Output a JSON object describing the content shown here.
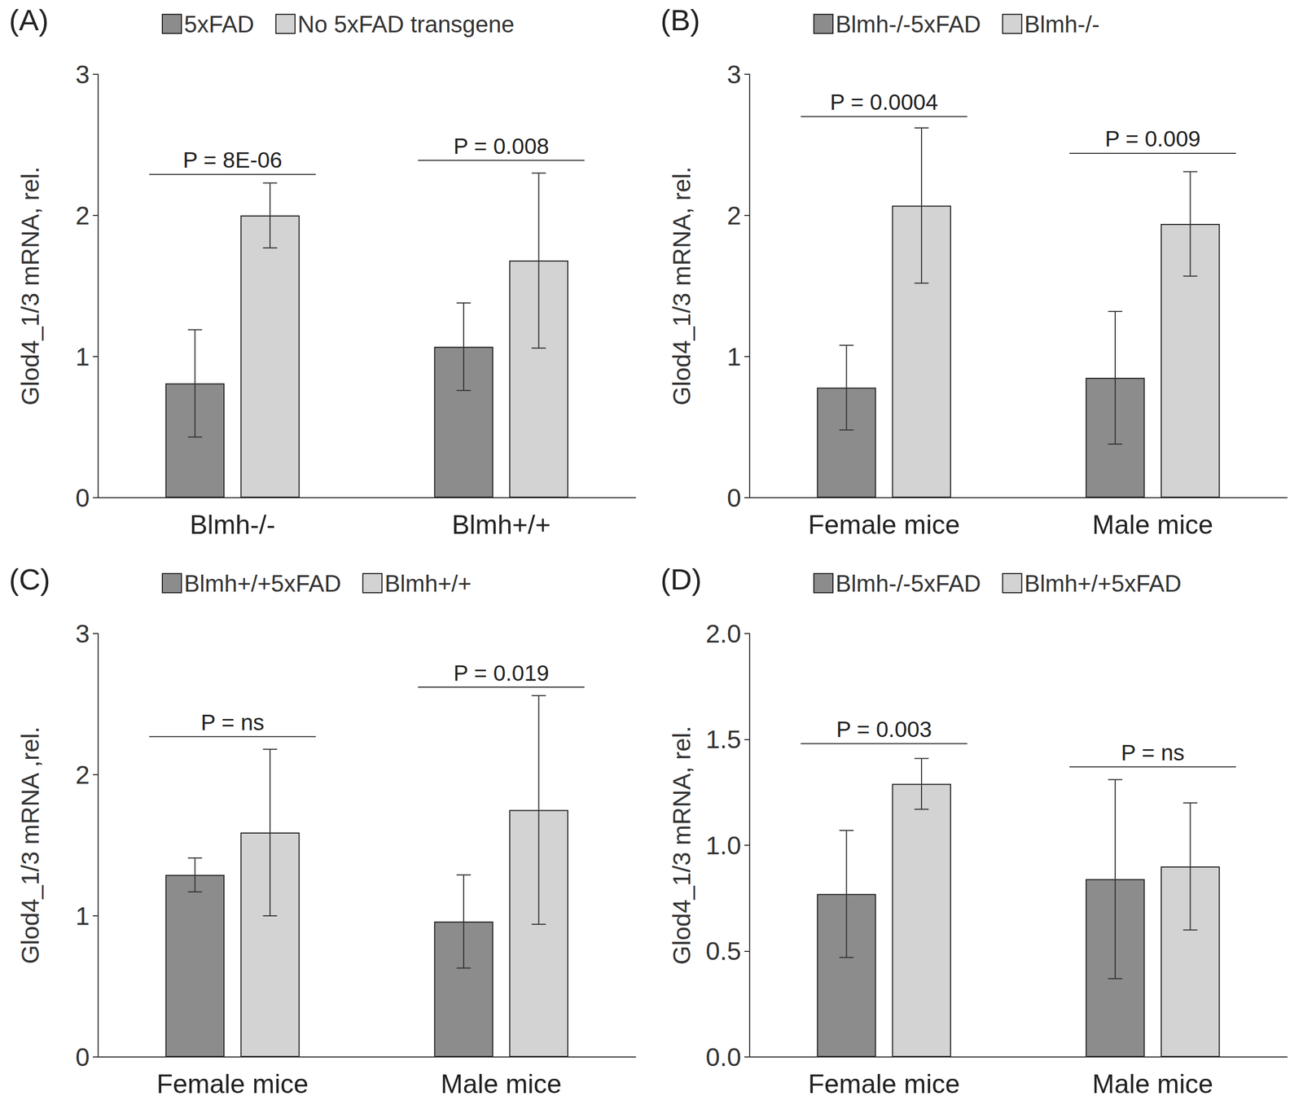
{
  "chart_data": [
    {
      "type": "bar",
      "title": "(A)",
      "y_label": "Glod4_1/3 mRNA, rel.",
      "categories": [
        "Blmh-/-",
        "Blmh+/+"
      ],
      "series": [
        {
          "name": "5xFAD",
          "color": "#8c8c8c",
          "values": [
            0.81,
            1.07
          ],
          "errors": [
            0.38,
            0.31
          ]
        },
        {
          "name": "No 5xFAD transgene",
          "color": "#d3d3d3",
          "values": [
            2.0,
            1.68
          ],
          "errors": [
            0.23,
            0.62
          ]
        }
      ],
      "ylim": [
        0,
        3
      ],
      "yticks": [
        0,
        1,
        2,
        3
      ],
      "grid": false,
      "legend": "top",
      "annotations": [
        {
          "text": "P = 8E-06",
          "category": "Blmh-/-",
          "y": 2.29
        },
        {
          "text": "P = 0.008",
          "category": "Blmh+/+",
          "y": 2.39
        }
      ]
    },
    {
      "type": "bar",
      "title": "(B)",
      "y_label": "Glod4_1/3 mRNA, rel.",
      "categories": [
        "Female mice",
        "Male mice"
      ],
      "series": [
        {
          "name": "Blmh-/-5xFAD",
          "color": "#8c8c8c",
          "values": [
            0.78,
            0.85
          ],
          "errors": [
            0.3,
            0.47
          ]
        },
        {
          "name": "Blmh-/-",
          "color": "#d3d3d3",
          "values": [
            2.07,
            1.94
          ],
          "errors": [
            0.55,
            0.37
          ]
        }
      ],
      "ylim": [
        0,
        3
      ],
      "yticks": [
        0,
        1,
        2,
        3
      ],
      "grid": false,
      "legend": "top",
      "annotations": [
        {
          "text": "P = 0.0004",
          "category": "Female mice",
          "y": 2.7
        },
        {
          "text": "P = 0.009",
          "category": "Male mice",
          "y": 2.44
        }
      ]
    },
    {
      "type": "bar",
      "title": "(C)",
      "y_label": "Glod4_1/3 mRNA ,rel.",
      "categories": [
        "Female mice",
        "Male mice"
      ],
      "series": [
        {
          "name": "Blmh+/+5xFAD",
          "color": "#8c8c8c",
          "values": [
            1.29,
            0.96
          ],
          "errors": [
            0.12,
            0.33
          ]
        },
        {
          "name": "Blmh+/+",
          "color": "#d3d3d3",
          "values": [
            1.59,
            1.75
          ],
          "errors": [
            0.59,
            0.81
          ]
        }
      ],
      "ylim": [
        0,
        3
      ],
      "yticks": [
        0,
        1,
        2,
        3
      ],
      "grid": false,
      "legend": "top",
      "annotations": [
        {
          "text": "P = ns",
          "category": "Female mice",
          "y": 2.27
        },
        {
          "text": "P = 0.019",
          "category": "Male mice",
          "y": 2.62
        }
      ]
    },
    {
      "type": "bar",
      "title": "(D)",
      "y_label": "Glod4_1/3 mRNA, rel.",
      "categories": [
        "Female mice",
        "Male mice"
      ],
      "series": [
        {
          "name": "Blmh-/-5xFAD",
          "color": "#8c8c8c",
          "values": [
            0.77,
            0.84
          ],
          "errors": [
            0.3,
            0.47
          ]
        },
        {
          "name": "Blmh+/+5xFAD",
          "color": "#d3d3d3",
          "values": [
            1.29,
            0.9
          ],
          "errors": [
            0.12,
            0.3
          ]
        }
      ],
      "ylim": [
        0,
        2
      ],
      "yticks": [
        {
          "value": 0,
          "label": "0.0"
        },
        0.5,
        {
          "value": 1,
          "label": "1.0"
        },
        1.5,
        {
          "value": 2,
          "label": "2.0"
        }
      ],
      "grid": false,
      "legend": "top",
      "annotations": [
        {
          "text": "P = 0.003",
          "category": "Female mice",
          "y": 1.48
        },
        {
          "text": "P = ns",
          "category": "Male mice",
          "y": 1.37
        }
      ]
    }
  ]
}
